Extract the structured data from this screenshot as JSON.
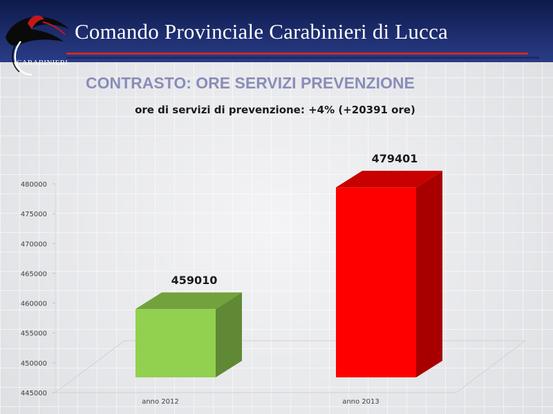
{
  "header": {
    "title": "Comando Provinciale Carabinieri di Lucca",
    "logo_text": "CARABINIERI",
    "colors": {
      "band": "#1d2d6e",
      "rule_red": "#cc2a1f",
      "rule_navy": "#1b2a6b"
    }
  },
  "slide": {
    "title": "CONTRASTO: ORE SERVIZI PREVENZIONE"
  },
  "chart_data": {
    "type": "bar",
    "title": "ore di servizi di prevenzione: +4% (+20391 ore)",
    "xlabel": "",
    "ylabel": "",
    "categories": [
      "anno 2012",
      "anno 2013"
    ],
    "values": [
      459010,
      479401
    ],
    "data_labels": [
      "459010",
      "479401"
    ],
    "ylim": [
      445000,
      480000
    ],
    "yticks": [
      445000,
      450000,
      455000,
      460000,
      465000,
      470000,
      475000,
      480000
    ],
    "ytick_labels": [
      "445000",
      "450000",
      "455000",
      "460000",
      "465000",
      "470000",
      "475000",
      "480000"
    ],
    "colors": [
      "#92d050",
      "#ff0000"
    ],
    "grid": false,
    "legend": "none",
    "style": "3d"
  }
}
